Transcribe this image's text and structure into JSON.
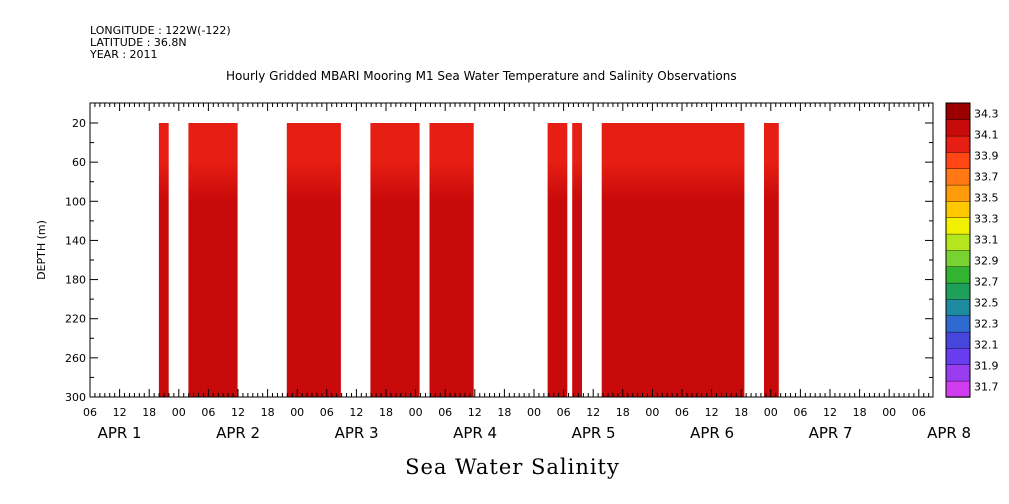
{
  "header": {
    "longitude": "LONGITUDE : 122W(-122)",
    "latitude": "LATITUDE : 36.8N",
    "year": "YEAR : 2011"
  },
  "title": "Hourly Gridded MBARI Mooring M1 Sea Water Temperature and Salinity Observations",
  "variable_title": "Sea Water Salinity",
  "chart_data": {
    "type": "heatmap",
    "title": "Hourly Gridded MBARI Mooring M1 Sea Water Temperature and Salinity Observations",
    "xlabel": "",
    "ylabel": "DEPTH (m)",
    "ylim": [
      300,
      10
    ],
    "y_ticks": [
      20,
      60,
      100,
      140,
      180,
      220,
      260,
      300
    ],
    "x_tick_labels": [
      "06",
      "12",
      "18",
      "00",
      "06",
      "12",
      "18",
      "00",
      "06",
      "12",
      "18",
      "00",
      "06",
      "12",
      "18",
      "00",
      "06",
      "12",
      "18",
      "00",
      "06",
      "12",
      "18",
      "00",
      "06",
      "12",
      "18",
      "00",
      "06",
      "12",
      "18",
      "00",
      "06"
    ],
    "day_labels": [
      "APR  1",
      "APR  2",
      "APR  3",
      "APR  4",
      "APR  5",
      "APR  6",
      "APR  7",
      "APR  8"
    ],
    "colorbar": {
      "levels": [
        31.7,
        31.9,
        32.1,
        32.3,
        32.5,
        32.7,
        32.9,
        33.1,
        33.3,
        33.5,
        33.7,
        33.9,
        34.1,
        34.3
      ],
      "colors": [
        "#d23cf0",
        "#9a3cf0",
        "#6a3cf0",
        "#4646dc",
        "#2e6ad0",
        "#1e8aa0",
        "#1ea05a",
        "#32b432",
        "#78d232",
        "#b4e61e",
        "#f0f000",
        "#ffc800",
        "#ff9b0a",
        "#ff7814",
        "#ff4614",
        "#e61e14",
        "#c80a0a",
        "#9b0000"
      ]
    },
    "data_segments_hours": [
      {
        "start": 14,
        "end": 16
      },
      {
        "start": 20,
        "end": 30
      },
      {
        "start": 40,
        "end": 51
      },
      {
        "start": 57,
        "end": 67
      },
      {
        "start": 69,
        "end": 73
      },
      {
        "start": 72,
        "end": 78
      },
      {
        "start": 93,
        "end": 97
      },
      {
        "start": 98,
        "end": 100
      },
      {
        "start": 104,
        "end": 133
      },
      {
        "start": 137,
        "end": 140
      }
    ],
    "profile": [
      {
        "depth": 20,
        "value": 33.9
      },
      {
        "depth": 40,
        "value": 34.0
      },
      {
        "depth": 60,
        "value": 34.05
      },
      {
        "depth": 100,
        "value": 34.1
      },
      {
        "depth": 140,
        "value": 34.15
      },
      {
        "depth": 180,
        "value": 34.18
      },
      {
        "depth": 220,
        "value": 34.2
      },
      {
        "depth": 260,
        "value": 34.25
      },
      {
        "depth": 300,
        "value": 34.2
      }
    ]
  }
}
